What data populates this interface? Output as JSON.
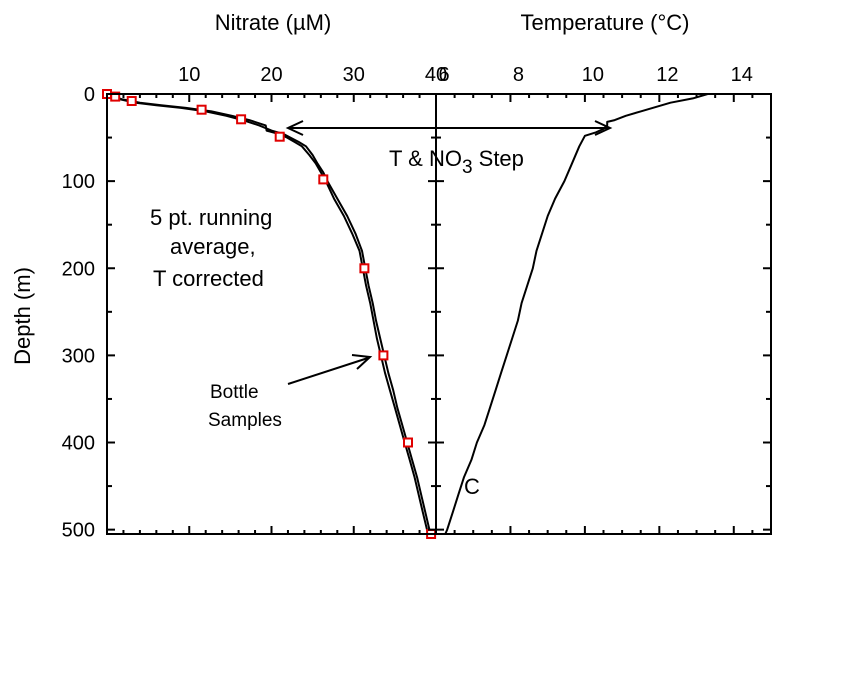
{
  "chart_data": {
    "type": "line",
    "left_axis_title": "Nitrate (µM)",
    "right_axis_title": "Temperature (°C)",
    "ylabel": "Depth (m)",
    "y_ticks": [
      "0",
      "100",
      "200",
      "300",
      "400",
      "500"
    ],
    "ylim": [
      0,
      505
    ],
    "y_inverted": true,
    "nitrate_xlim": [
      0,
      40
    ],
    "nitrate_ticks": [
      "10",
      "20",
      "30",
      "40"
    ],
    "temperature_xlim": [
      6,
      15
    ],
    "temperature_ticks": [
      "6",
      "8",
      "10",
      "12",
      "14"
    ],
    "annotations": {
      "step_label_prefix": "T & NO",
      "step_label_sub": "3",
      "step_label_suffix": " Step",
      "running_avg_line1": "5 pt. running",
      "running_avg_line2": "average,",
      "running_avg_line3": "T corrected",
      "bottle_line1": "Bottle",
      "bottle_line2": "Samples",
      "panel_letter": "C"
    },
    "series": [
      {
        "kind": "nitrate",
        "depth": [
          0,
          3,
          6,
          10,
          13,
          16,
          20,
          25,
          30,
          36,
          42,
          46,
          50,
          55,
          60,
          70,
          80,
          90,
          100,
          120,
          140,
          160,
          180,
          200,
          220,
          240,
          260,
          280,
          300,
          320,
          340,
          360,
          380,
          400,
          420,
          440,
          460,
          480,
          500,
          505
        ],
        "values": [
          0,
          0.6,
          1.5,
          3.5,
          6.0,
          9.0,
          12.0,
          14.5,
          16.5,
          18.5,
          20.0,
          21.5,
          22.3,
          23.3,
          24.2,
          25.0,
          25.6,
          26.3,
          26.8,
          28.0,
          29.2,
          30.2,
          31.0,
          31.4,
          31.8,
          32.3,
          32.7,
          33.2,
          33.7,
          34.2,
          34.8,
          35.3,
          35.9,
          36.5,
          37.1,
          37.7,
          38.2,
          38.7,
          39.2,
          39.5
        ]
      },
      {
        "kind": "nitrate",
        "depth": [
          0,
          3,
          6,
          10,
          13,
          16,
          20,
          25,
          30,
          36,
          42,
          46,
          50,
          55,
          60,
          70,
          80,
          90,
          100,
          120,
          140,
          160,
          180,
          200,
          220,
          240,
          260,
          280,
          300,
          320,
          340,
          360,
          380,
          400,
          420,
          440,
          460,
          480,
          500,
          505
        ],
        "values": [
          0,
          0.8,
          1.8,
          4.0,
          6.6,
          9.6,
          12.7,
          15.2,
          17.3,
          19.3,
          19.4,
          21.0,
          21.9,
          22.8,
          23.7,
          24.6,
          25.4,
          26.0,
          26.6,
          27.6,
          28.8,
          29.8,
          30.7,
          31.1,
          31.5,
          32.0,
          32.4,
          32.8,
          33.3,
          33.8,
          34.4,
          35.0,
          35.6,
          36.2,
          36.8,
          37.4,
          37.9,
          38.4,
          38.9,
          39.2
        ]
      },
      {
        "kind": "temperature",
        "depth": [
          0,
          5,
          10,
          20,
          25,
          30,
          32,
          36,
          40,
          44,
          48,
          60,
          80,
          100,
          120,
          140,
          160,
          180,
          200,
          220,
          240,
          260,
          280,
          300,
          320,
          340,
          360,
          380,
          400,
          420,
          440,
          460,
          480,
          500,
          505
        ],
        "values": [
          13.3,
          12.9,
          12.3,
          11.5,
          11.1,
          10.8,
          10.6,
          10.6,
          10.5,
          10.3,
          10.0,
          9.85,
          9.65,
          9.45,
          9.2,
          9.0,
          8.85,
          8.7,
          8.6,
          8.45,
          8.3,
          8.2,
          8.05,
          7.9,
          7.75,
          7.6,
          7.45,
          7.3,
          7.1,
          6.95,
          6.75,
          6.6,
          6.45,
          6.3,
          6.25
        ]
      }
    ],
    "bottle_samples": {
      "depth": [
        0,
        3,
        8,
        18,
        29,
        49,
        98,
        200,
        300,
        400,
        505
      ],
      "values": [
        0,
        1,
        3,
        11.5,
        16.3,
        21,
        26.3,
        31.3,
        33.6,
        36.6,
        39.4
      ]
    },
    "colors": {
      "axis": "#000000",
      "line": "#000000",
      "bottle_marker": "#e00000"
    }
  }
}
